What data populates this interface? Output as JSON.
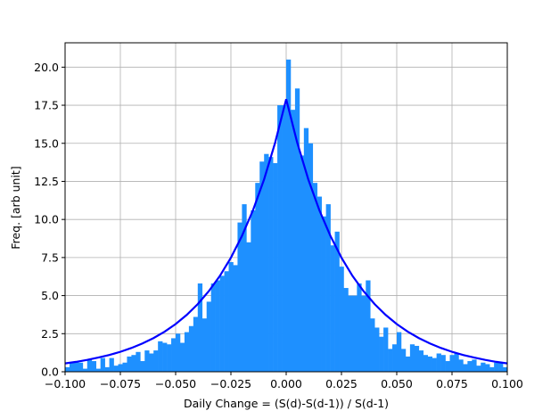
{
  "chart_data": {
    "type": "histogram",
    "xlabel": "Daily Change = (S(d)-S(d-1)) / S(d-1)",
    "ylabel": "Freq. [arb unit]",
    "color": "#1e90ff",
    "bins": [
      -0.1,
      -0.098,
      -0.096,
      -0.094,
      -0.092,
      -0.09,
      -0.088,
      -0.086,
      -0.084,
      -0.082,
      -0.08,
      -0.078,
      -0.076,
      -0.074,
      -0.072,
      -0.07,
      -0.068,
      -0.066,
      -0.064,
      -0.062,
      -0.06,
      -0.058,
      -0.056,
      -0.054,
      -0.052,
      -0.05,
      -0.048,
      -0.046,
      -0.044,
      -0.042,
      -0.04,
      -0.038,
      -0.036,
      -0.034,
      -0.032,
      -0.03,
      -0.028,
      -0.026,
      -0.024,
      -0.022,
      -0.02,
      -0.018,
      -0.016,
      -0.014,
      -0.012,
      -0.01,
      -0.008,
      -0.006,
      -0.004,
      -0.002,
      0,
      0.002,
      0.004,
      0.006,
      0.008,
      0.01,
      0.012,
      0.014,
      0.016,
      0.018,
      0.02,
      0.022,
      0.024,
      0.026,
      0.028,
      0.03,
      0.032,
      0.034,
      0.036,
      0.038,
      0.04,
      0.042,
      0.044,
      0.046,
      0.048,
      0.05,
      0.052,
      0.054,
      0.056,
      0.058,
      0.06,
      0.062,
      0.064,
      0.066,
      0.068,
      0.07,
      0.072,
      0.074,
      0.076,
      0.078,
      0.08,
      0.082,
      0.084,
      0.086,
      0.088,
      0.09,
      0.092,
      0.094,
      0.096,
      0.098,
      0.1
    ],
    "values": [
      0.3,
      0.6,
      0.7,
      0.6,
      0.2,
      0.8,
      0.7,
      0.2,
      0.9,
      0.3,
      0.9,
      0.4,
      0.5,
      0.6,
      1.0,
      1.1,
      1.3,
      0.7,
      1.4,
      1.2,
      1.4,
      2.0,
      1.9,
      1.8,
      2.2,
      2.5,
      1.9,
      2.6,
      3.0,
      3.6,
      5.8,
      3.5,
      4.6,
      5.8,
      6.0,
      6.3,
      6.6,
      7.2,
      7.0,
      9.8,
      11.0,
      8.5,
      10.6,
      12.4,
      13.8,
      14.3,
      14.1,
      13.7,
      17.5,
      17.5,
      20.5,
      17.2,
      18.6,
      14.2,
      16.0,
      15.0,
      12.4,
      11.5,
      10.2,
      11.0,
      8.3,
      9.2,
      6.9,
      5.5,
      5.0,
      5.0,
      5.8,
      5.0,
      6.0,
      3.5,
      2.9,
      2.3,
      2.9,
      1.5,
      1.8,
      2.6,
      1.5,
      1.0,
      1.8,
      1.7,
      1.4,
      1.1,
      1.0,
      0.9,
      1.2,
      1.1,
      0.7,
      1.1,
      1.2,
      0.8,
      0.5,
      0.7,
      0.8,
      0.4,
      0.6,
      0.5,
      0.3,
      0.6,
      0.6,
      0.3
    ],
    "fit": {
      "color": "#0000ff",
      "x": [
        -0.1,
        -0.095,
        -0.09,
        -0.085,
        -0.08,
        -0.075,
        -0.07,
        -0.065,
        -0.06,
        -0.055,
        -0.05,
        -0.045,
        -0.04,
        -0.035,
        -0.03,
        -0.025,
        -0.02,
        -0.015,
        -0.01,
        -0.005,
        0,
        0.005,
        0.01,
        0.015,
        0.02,
        0.025,
        0.03,
        0.035,
        0.04,
        0.045,
        0.05,
        0.055,
        0.06,
        0.065,
        0.07,
        0.075,
        0.08,
        0.085,
        0.09,
        0.095,
        0.1
      ],
      "y": [
        0.55,
        0.65,
        0.78,
        0.93,
        1.1,
        1.31,
        1.56,
        1.86,
        2.21,
        2.63,
        3.13,
        3.73,
        4.44,
        5.29,
        6.29,
        7.49,
        8.92,
        10.61,
        12.63,
        15.04,
        17.9,
        15.04,
        12.63,
        10.61,
        8.92,
        7.49,
        6.29,
        5.29,
        4.44,
        3.73,
        3.13,
        2.63,
        2.21,
        1.86,
        1.56,
        1.31,
        1.1,
        0.93,
        0.78,
        0.65,
        0.55
      ]
    },
    "xlim": [
      -0.1,
      0.1
    ],
    "ylim": [
      0,
      21.6
    ],
    "xticks": [
      {
        "value": -0.1,
        "label": "−0.100"
      },
      {
        "value": -0.075,
        "label": "−0.075"
      },
      {
        "value": -0.05,
        "label": "−0.050"
      },
      {
        "value": -0.025,
        "label": "−0.025"
      },
      {
        "value": 0,
        "label": "0.000"
      },
      {
        "value": 0.025,
        "label": "0.025"
      },
      {
        "value": 0.05,
        "label": "0.050"
      },
      {
        "value": 0.075,
        "label": "0.075"
      },
      {
        "value": 0.1,
        "label": "0.100"
      }
    ],
    "yticks": [
      {
        "value": 0,
        "label": "0.0"
      },
      2.5,
      {
        "value": 5,
        "label": "5.0"
      },
      7.5,
      {
        "value": 10,
        "label": "10.0"
      },
      12.5,
      {
        "value": 15,
        "label": "15.0"
      },
      17.5,
      {
        "value": 20,
        "label": "20.0"
      }
    ],
    "grid": true
  }
}
